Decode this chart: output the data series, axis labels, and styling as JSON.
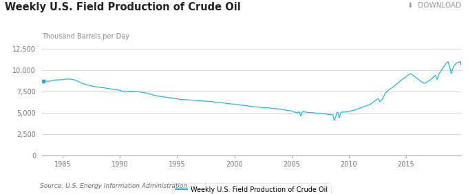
{
  "title": "Weekly U.S. Field Production of Crude Oil",
  "ylabel": "Thousand Barrels per Day",
  "legend_label": "Weekly U.S. Field Production of Crude Oil",
  "source": "Source: U.S. Energy Information Administration",
  "download_text": "⬇  DOWNLOAD",
  "line_color": "#1aafe6",
  "background_color": "#ffffff",
  "grid_color": "#d0d0d0",
  "title_color": "#222222",
  "label_color": "#777777",
  "ylim": [
    0,
    13000
  ],
  "yticks": [
    0,
    2500,
    5000,
    7500,
    10000,
    12500
  ],
  "ytick_labels": [
    "0",
    "2,500",
    "5,000",
    "7,500",
    "10,000",
    "12,500"
  ],
  "xticks": [
    1985,
    1990,
    1995,
    2000,
    2005,
    2010,
    2015
  ],
  "xlim": [
    1983.2,
    2019.8
  ],
  "data": [
    [
      1983.3,
      8700
    ],
    [
      1983.4,
      8680
    ],
    [
      1983.5,
      8700
    ],
    [
      1983.6,
      8720
    ],
    [
      1983.7,
      8690
    ],
    [
      1983.8,
      8700
    ],
    [
      1983.9,
      8720
    ],
    [
      1984.0,
      8750
    ],
    [
      1984.1,
      8770
    ],
    [
      1984.2,
      8800
    ],
    [
      1984.3,
      8840
    ],
    [
      1984.5,
      8860
    ],
    [
      1984.6,
      8855
    ],
    [
      1984.7,
      8870
    ],
    [
      1984.8,
      8880
    ],
    [
      1984.9,
      8860
    ],
    [
      1985.0,
      8900
    ],
    [
      1985.1,
      8920
    ],
    [
      1985.2,
      8940
    ],
    [
      1985.3,
      8950
    ],
    [
      1985.4,
      8960
    ],
    [
      1985.5,
      8940
    ],
    [
      1985.6,
      8920
    ],
    [
      1985.7,
      8930
    ],
    [
      1985.8,
      8920
    ],
    [
      1985.9,
      8890
    ],
    [
      1986.0,
      8860
    ],
    [
      1986.1,
      8820
    ],
    [
      1986.2,
      8780
    ],
    [
      1986.3,
      8720
    ],
    [
      1986.4,
      8640
    ],
    [
      1986.5,
      8560
    ],
    [
      1986.6,
      8500
    ],
    [
      1986.7,
      8440
    ],
    [
      1986.8,
      8400
    ],
    [
      1986.9,
      8380
    ],
    [
      1987.0,
      8340
    ],
    [
      1987.1,
      8290
    ],
    [
      1987.2,
      8250
    ],
    [
      1987.3,
      8210
    ],
    [
      1987.4,
      8180
    ],
    [
      1987.5,
      8150
    ],
    [
      1987.6,
      8120
    ],
    [
      1987.7,
      8100
    ],
    [
      1987.8,
      8080
    ],
    [
      1987.9,
      8050
    ],
    [
      1988.0,
      8030
    ],
    [
      1988.1,
      8010
    ],
    [
      1988.2,
      7990
    ],
    [
      1988.3,
      7970
    ],
    [
      1988.4,
      7950
    ],
    [
      1988.5,
      7940
    ],
    [
      1988.6,
      7920
    ],
    [
      1988.7,
      7900
    ],
    [
      1988.8,
      7880
    ],
    [
      1988.9,
      7860
    ],
    [
      1989.0,
      7840
    ],
    [
      1989.1,
      7820
    ],
    [
      1989.2,
      7800
    ],
    [
      1989.3,
      7780
    ],
    [
      1989.4,
      7760
    ],
    [
      1989.5,
      7740
    ],
    [
      1989.6,
      7720
    ],
    [
      1989.7,
      7700
    ],
    [
      1989.8,
      7680
    ],
    [
      1989.9,
      7650
    ],
    [
      1990.0,
      7620
    ],
    [
      1990.1,
      7580
    ],
    [
      1990.2,
      7540
    ],
    [
      1990.3,
      7490
    ],
    [
      1990.4,
      7450
    ],
    [
      1990.5,
      7430
    ],
    [
      1990.6,
      7450
    ],
    [
      1990.7,
      7490
    ],
    [
      1990.8,
      7510
    ],
    [
      1990.9,
      7510
    ],
    [
      1991.0,
      7530
    ],
    [
      1991.1,
      7520
    ],
    [
      1991.2,
      7510
    ],
    [
      1991.3,
      7490
    ],
    [
      1991.4,
      7480
    ],
    [
      1991.5,
      7470
    ],
    [
      1991.6,
      7460
    ],
    [
      1991.7,
      7440
    ],
    [
      1991.8,
      7420
    ],
    [
      1991.9,
      7400
    ],
    [
      1992.0,
      7380
    ],
    [
      1992.1,
      7360
    ],
    [
      1992.2,
      7330
    ],
    [
      1992.3,
      7300
    ],
    [
      1992.4,
      7270
    ],
    [
      1992.5,
      7240
    ],
    [
      1992.6,
      7210
    ],
    [
      1992.7,
      7170
    ],
    [
      1992.8,
      7130
    ],
    [
      1992.9,
      7090
    ],
    [
      1993.0,
      7050
    ],
    [
      1993.1,
      7010
    ],
    [
      1993.2,
      6980
    ],
    [
      1993.3,
      6960
    ],
    [
      1993.4,
      6940
    ],
    [
      1993.5,
      6920
    ],
    [
      1993.6,
      6900
    ],
    [
      1993.7,
      6880
    ],
    [
      1993.8,
      6860
    ],
    [
      1993.9,
      6840
    ],
    [
      1994.0,
      6820
    ],
    [
      1994.1,
      6800
    ],
    [
      1994.2,
      6780
    ],
    [
      1994.3,
      6760
    ],
    [
      1994.4,
      6740
    ],
    [
      1994.5,
      6720
    ],
    [
      1994.6,
      6700
    ],
    [
      1994.7,
      6680
    ],
    [
      1994.8,
      6660
    ],
    [
      1994.9,
      6640
    ],
    [
      1995.0,
      6620
    ],
    [
      1995.1,
      6600
    ],
    [
      1995.2,
      6580
    ],
    [
      1995.3,
      6570
    ],
    [
      1995.4,
      6560
    ],
    [
      1995.5,
      6550
    ],
    [
      1995.6,
      6540
    ],
    [
      1995.7,
      6530
    ],
    [
      1995.8,
      6520
    ],
    [
      1995.9,
      6510
    ],
    [
      1996.0,
      6500
    ],
    [
      1996.1,
      6490
    ],
    [
      1996.2,
      6480
    ],
    [
      1996.3,
      6470
    ],
    [
      1996.4,
      6460
    ],
    [
      1996.5,
      6450
    ],
    [
      1996.6,
      6440
    ],
    [
      1996.7,
      6430
    ],
    [
      1996.8,
      6420
    ],
    [
      1996.9,
      6410
    ],
    [
      1997.0,
      6400
    ],
    [
      1997.1,
      6390
    ],
    [
      1997.2,
      6380
    ],
    [
      1997.3,
      6370
    ],
    [
      1997.4,
      6360
    ],
    [
      1997.5,
      6350
    ],
    [
      1997.6,
      6340
    ],
    [
      1997.7,
      6330
    ],
    [
      1997.8,
      6320
    ],
    [
      1997.9,
      6310
    ],
    [
      1998.0,
      6300
    ],
    [
      1998.1,
      6290
    ],
    [
      1998.2,
      6270
    ],
    [
      1998.3,
      6250
    ],
    [
      1998.4,
      6230
    ],
    [
      1998.5,
      6210
    ],
    [
      1998.6,
      6190
    ],
    [
      1998.7,
      6180
    ],
    [
      1998.8,
      6170
    ],
    [
      1998.9,
      6160
    ],
    [
      1999.0,
      6150
    ],
    [
      1999.1,
      6130
    ],
    [
      1999.2,
      6110
    ],
    [
      1999.3,
      6090
    ],
    [
      1999.4,
      6070
    ],
    [
      1999.5,
      6050
    ],
    [
      1999.6,
      6040
    ],
    [
      1999.7,
      6030
    ],
    [
      1999.8,
      6020
    ],
    [
      1999.9,
      6010
    ],
    [
      2000.0,
      6000
    ],
    [
      2000.1,
      5990
    ],
    [
      2000.2,
      5970
    ],
    [
      2000.3,
      5950
    ],
    [
      2000.4,
      5930
    ],
    [
      2000.5,
      5920
    ],
    [
      2000.6,
      5910
    ],
    [
      2000.7,
      5890
    ],
    [
      2000.8,
      5870
    ],
    [
      2000.9,
      5850
    ],
    [
      2001.0,
      5830
    ],
    [
      2001.1,
      5810
    ],
    [
      2001.2,
      5790
    ],
    [
      2001.3,
      5770
    ],
    [
      2001.4,
      5750
    ],
    [
      2001.5,
      5730
    ],
    [
      2001.6,
      5710
    ],
    [
      2001.7,
      5690
    ],
    [
      2001.8,
      5680
    ],
    [
      2001.9,
      5670
    ],
    [
      2002.0,
      5660
    ],
    [
      2002.1,
      5650
    ],
    [
      2002.2,
      5640
    ],
    [
      2002.3,
      5630
    ],
    [
      2002.4,
      5620
    ],
    [
      2002.5,
      5610
    ],
    [
      2002.6,
      5600
    ],
    [
      2002.7,
      5590
    ],
    [
      2002.8,
      5580
    ],
    [
      2002.9,
      5570
    ],
    [
      2003.0,
      5560
    ],
    [
      2003.1,
      5545
    ],
    [
      2003.2,
      5530
    ],
    [
      2003.3,
      5515
    ],
    [
      2003.4,
      5500
    ],
    [
      2003.5,
      5490
    ],
    [
      2003.6,
      5480
    ],
    [
      2003.7,
      5460
    ],
    [
      2003.8,
      5440
    ],
    [
      2003.9,
      5420
    ],
    [
      2004.0,
      5400
    ],
    [
      2004.1,
      5380
    ],
    [
      2004.2,
      5360
    ],
    [
      2004.3,
      5340
    ],
    [
      2004.4,
      5320
    ],
    [
      2004.5,
      5300
    ],
    [
      2004.6,
      5280
    ],
    [
      2004.7,
      5260
    ],
    [
      2004.8,
      5240
    ],
    [
      2004.9,
      5220
    ],
    [
      2005.0,
      5200
    ],
    [
      2005.1,
      5150
    ],
    [
      2005.2,
      5100
    ],
    [
      2005.3,
      5050
    ],
    [
      2005.4,
      5020
    ],
    [
      2005.45,
      5010
    ],
    [
      2005.5,
      4980
    ],
    [
      2005.55,
      5050
    ],
    [
      2005.6,
      5080
    ],
    [
      2005.65,
      5060
    ],
    [
      2005.7,
      5040
    ],
    [
      2005.75,
      4800
    ],
    [
      2005.8,
      4600
    ],
    [
      2005.85,
      4750
    ],
    [
      2005.9,
      5000
    ],
    [
      2005.95,
      5100
    ],
    [
      2006.0,
      5150
    ],
    [
      2006.1,
      5100
    ],
    [
      2006.2,
      5070
    ],
    [
      2006.3,
      5050
    ],
    [
      2006.4,
      5040
    ],
    [
      2006.5,
      5030
    ],
    [
      2006.6,
      5020
    ],
    [
      2006.7,
      5010
    ],
    [
      2006.8,
      5000
    ],
    [
      2006.9,
      4980
    ],
    [
      2007.0,
      4960
    ],
    [
      2007.1,
      4950
    ],
    [
      2007.2,
      4940
    ],
    [
      2007.3,
      4930
    ],
    [
      2007.4,
      4920
    ],
    [
      2007.5,
      4910
    ],
    [
      2007.6,
      4900
    ],
    [
      2007.7,
      4890
    ],
    [
      2007.8,
      4880
    ],
    [
      2007.9,
      4860
    ],
    [
      2008.0,
      4840
    ],
    [
      2008.1,
      4820
    ],
    [
      2008.2,
      4800
    ],
    [
      2008.3,
      4780
    ],
    [
      2008.4,
      4760
    ],
    [
      2008.5,
      4750
    ],
    [
      2008.6,
      4740
    ],
    [
      2008.65,
      4500
    ],
    [
      2008.7,
      4200
    ],
    [
      2008.75,
      4100
    ],
    [
      2008.8,
      4300
    ],
    [
      2008.9,
      4700
    ],
    [
      2008.95,
      5000
    ],
    [
      2009.0,
      5050
    ],
    [
      2009.05,
      5020
    ],
    [
      2009.1,
      4800
    ],
    [
      2009.15,
      4400
    ],
    [
      2009.2,
      4500
    ],
    [
      2009.25,
      4800
    ],
    [
      2009.3,
      5000
    ],
    [
      2009.35,
      5050
    ],
    [
      2009.4,
      5060
    ],
    [
      2009.5,
      5070
    ],
    [
      2009.6,
      5080
    ],
    [
      2009.7,
      5090
    ],
    [
      2009.8,
      5100
    ],
    [
      2009.9,
      5120
    ],
    [
      2010.0,
      5150
    ],
    [
      2010.1,
      5180
    ],
    [
      2010.2,
      5210
    ],
    [
      2010.3,
      5240
    ],
    [
      2010.4,
      5270
    ],
    [
      2010.5,
      5300
    ],
    [
      2010.6,
      5350
    ],
    [
      2010.7,
      5400
    ],
    [
      2010.8,
      5450
    ],
    [
      2010.9,
      5500
    ],
    [
      2011.0,
      5550
    ],
    [
      2011.1,
      5600
    ],
    [
      2011.2,
      5650
    ],
    [
      2011.3,
      5700
    ],
    [
      2011.4,
      5750
    ],
    [
      2011.5,
      5800
    ],
    [
      2011.6,
      5850
    ],
    [
      2011.7,
      5900
    ],
    [
      2011.8,
      5950
    ],
    [
      2011.9,
      6000
    ],
    [
      2012.0,
      6100
    ],
    [
      2012.1,
      6200
    ],
    [
      2012.2,
      6320
    ],
    [
      2012.3,
      6400
    ],
    [
      2012.4,
      6500
    ],
    [
      2012.5,
      6600
    ],
    [
      2012.6,
      6650
    ],
    [
      2012.7,
      6300
    ],
    [
      2012.8,
      6400
    ],
    [
      2012.9,
      6500
    ],
    [
      2013.0,
      6800
    ],
    [
      2013.1,
      7050
    ],
    [
      2013.2,
      7300
    ],
    [
      2013.3,
      7450
    ],
    [
      2013.4,
      7600
    ],
    [
      2013.5,
      7700
    ],
    [
      2013.6,
      7780
    ],
    [
      2013.7,
      7850
    ],
    [
      2013.8,
      7950
    ],
    [
      2013.9,
      8050
    ],
    [
      2014.0,
      8200
    ],
    [
      2014.1,
      8300
    ],
    [
      2014.2,
      8400
    ],
    [
      2014.3,
      8500
    ],
    [
      2014.4,
      8600
    ],
    [
      2014.5,
      8750
    ],
    [
      2014.6,
      8850
    ],
    [
      2014.7,
      8950
    ],
    [
      2014.8,
      9050
    ],
    [
      2014.9,
      9100
    ],
    [
      2015.0,
      9200
    ],
    [
      2015.1,
      9350
    ],
    [
      2015.2,
      9450
    ],
    [
      2015.3,
      9500
    ],
    [
      2015.4,
      9580
    ],
    [
      2015.45,
      9560
    ],
    [
      2015.5,
      9500
    ],
    [
      2015.6,
      9400
    ],
    [
      2015.7,
      9300
    ],
    [
      2015.8,
      9200
    ],
    [
      2015.9,
      9100
    ],
    [
      2016.0,
      9000
    ],
    [
      2016.1,
      8900
    ],
    [
      2016.2,
      8800
    ],
    [
      2016.3,
      8700
    ],
    [
      2016.4,
      8600
    ],
    [
      2016.5,
      8500
    ],
    [
      2016.6,
      8450
    ],
    [
      2016.7,
      8500
    ],
    [
      2016.8,
      8600
    ],
    [
      2016.9,
      8700
    ],
    [
      2017.0,
      8750
    ],
    [
      2017.1,
      8850
    ],
    [
      2017.2,
      8950
    ],
    [
      2017.3,
      9050
    ],
    [
      2017.4,
      9200
    ],
    [
      2017.5,
      9300
    ],
    [
      2017.6,
      9400
    ],
    [
      2017.65,
      9100
    ],
    [
      2017.7,
      8900
    ],
    [
      2017.75,
      9000
    ],
    [
      2017.8,
      9300
    ],
    [
      2017.9,
      9600
    ],
    [
      2018.0,
      9800
    ],
    [
      2018.1,
      10000
    ],
    [
      2018.2,
      10200
    ],
    [
      2018.3,
      10400
    ],
    [
      2018.4,
      10600
    ],
    [
      2018.5,
      10800
    ],
    [
      2018.6,
      10900
    ],
    [
      2018.65,
      11000
    ],
    [
      2018.7,
      10900
    ],
    [
      2018.75,
      10600
    ],
    [
      2018.8,
      10400
    ],
    [
      2018.85,
      10200
    ],
    [
      2018.9,
      9800
    ],
    [
      2018.95,
      9600
    ],
    [
      2019.0,
      9800
    ],
    [
      2019.05,
      10100
    ],
    [
      2019.1,
      10200
    ],
    [
      2019.15,
      10400
    ],
    [
      2019.2,
      10500
    ],
    [
      2019.3,
      10700
    ],
    [
      2019.4,
      10800
    ],
    [
      2019.5,
      10900
    ],
    [
      2019.6,
      10950
    ],
    [
      2019.7,
      10980
    ],
    [
      2019.75,
      11000
    ],
    [
      2019.8,
      10600
    ]
  ]
}
